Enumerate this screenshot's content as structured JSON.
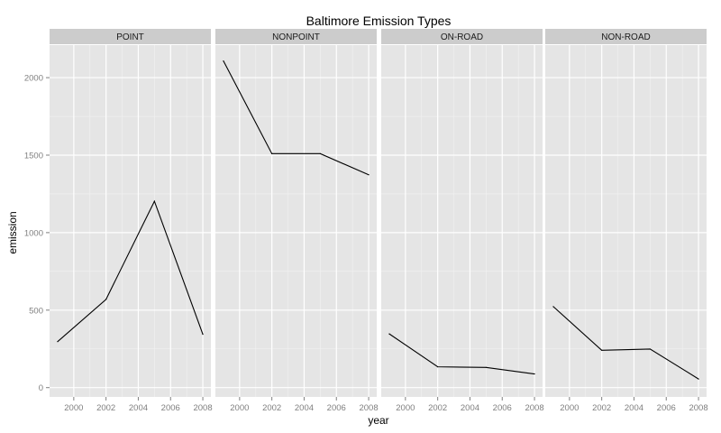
{
  "chart_data": {
    "type": "line",
    "title": "Baltimore Emission Types",
    "xlabel": "year",
    "ylabel": "emission",
    "x": [
      1999,
      2002,
      2005,
      2008
    ],
    "xticks": [
      "2000",
      "2002",
      "2004",
      "2006",
      "2008"
    ],
    "xtick_values": [
      2000,
      2002,
      2004,
      2006,
      2008
    ],
    "yticks": [
      "0",
      "500",
      "1000",
      "1500",
      "2000"
    ],
    "ytick_values": [
      0,
      500,
      1000,
      1500,
      2000
    ],
    "xlim": [
      1998.5,
      2008.5
    ],
    "ylim": [
      -60,
      2210
    ],
    "grid": true,
    "facets": [
      {
        "name": "POINT",
        "values": [
          296.8,
          569.3,
          1202.5,
          344.1
        ]
      },
      {
        "name": "NONPOINT",
        "values": [
          2107.6,
          1509.5,
          1509.5,
          1373.2
        ]
      },
      {
        "name": "ON-ROAD",
        "values": [
          346.8,
          134.3,
          130.4,
          88.3
        ]
      },
      {
        "name": "NON-ROAD",
        "values": [
          522.9,
          241.0,
          248.9,
          55.8
        ]
      }
    ]
  },
  "colors": {
    "panel_background": "#e5e5e5",
    "strip_background": "#cccccc",
    "grid_major": "#ffffff",
    "grid_minor": "#f2f2f2",
    "line": "#000000"
  }
}
